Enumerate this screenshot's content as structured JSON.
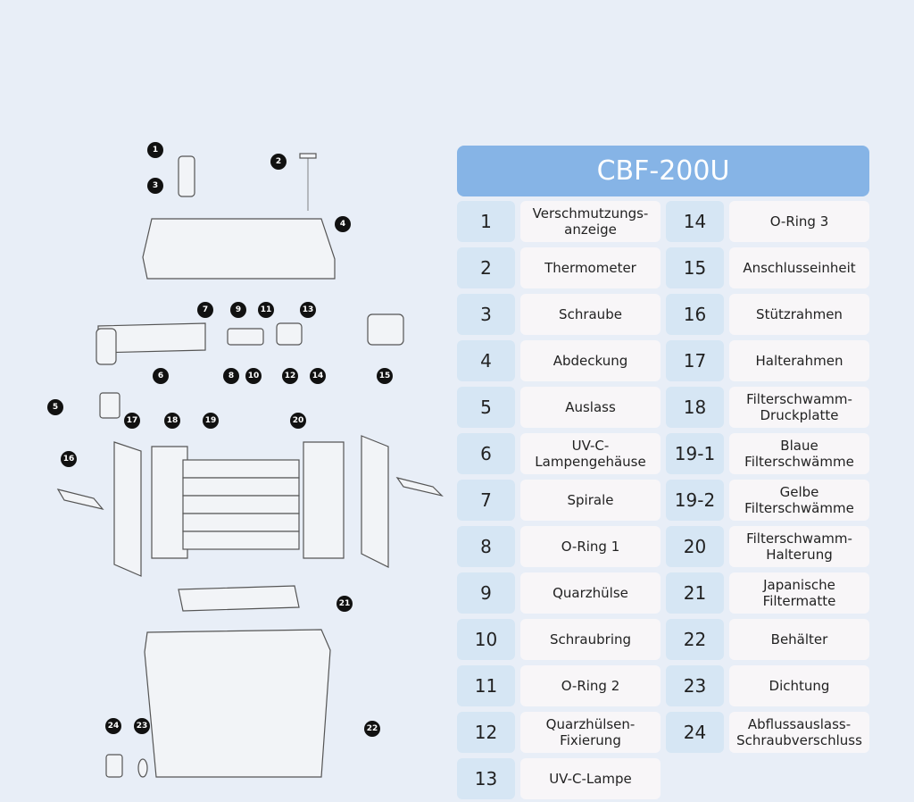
{
  "title": "CBF-200U",
  "left_column": [
    {
      "number": "1",
      "name": [
        "Verschmutzungs-",
        "anzeige"
      ]
    },
    {
      "number": "2",
      "name": [
        "Thermometer"
      ]
    },
    {
      "number": "3",
      "name": [
        "Schraube"
      ]
    },
    {
      "number": "4",
      "name": [
        "Abdeckung"
      ]
    },
    {
      "number": "5",
      "name": [
        "Auslass"
      ]
    },
    {
      "number": "6",
      "name": [
        "UV-C-",
        "Lampengehäuse"
      ]
    },
    {
      "number": "7",
      "name": [
        "Spirale"
      ]
    },
    {
      "number": "8",
      "name": [
        "O-Ring 1"
      ]
    },
    {
      "number": "9",
      "name": [
        "Quarzhülse"
      ]
    },
    {
      "number": "10",
      "name": [
        "Schraubring"
      ]
    },
    {
      "number": "11",
      "name": [
        "O-Ring 2"
      ]
    },
    {
      "number": "12",
      "name": [
        "Quarzhülsen-",
        "Fixierung"
      ]
    },
    {
      "number": "13",
      "name": [
        "UV-C-Lampe"
      ]
    }
  ],
  "right_column": [
    {
      "number": "14",
      "name": [
        "O-Ring 3"
      ]
    },
    {
      "number": "15",
      "name": [
        "Anschlusseinheit"
      ]
    },
    {
      "number": "16",
      "name": [
        "Stützrahmen"
      ]
    },
    {
      "number": "17",
      "name": [
        "Halterahmen"
      ]
    },
    {
      "number": "18",
      "name": [
        "Filterschwamm-",
        "Druckplatte"
      ]
    },
    {
      "number": "19-1",
      "name": [
        "Blaue",
        "Filterschwämme"
      ]
    },
    {
      "number": "19-2",
      "name": [
        "Gelbe",
        "Filterschwämme"
      ]
    },
    {
      "number": "20",
      "name": [
        "Filterschwamm-",
        "Halterung"
      ]
    },
    {
      "number": "21",
      "name": [
        "Japanische",
        "Filtermatte"
      ]
    },
    {
      "number": "22",
      "name": [
        "Behälter"
      ]
    },
    {
      "number": "23",
      "name": [
        "Dichtung"
      ]
    },
    {
      "number": "24",
      "name": [
        "Abflussauslass-",
        "Schraubverschluss"
      ]
    }
  ],
  "callouts": [
    "1",
    "2",
    "3",
    "4",
    "5",
    "6",
    "7",
    "8",
    "9",
    "10",
    "11",
    "12",
    "13",
    "14",
    "15",
    "16",
    "17",
    "18",
    "19",
    "20",
    "21",
    "22",
    "23",
    "24"
  ]
}
